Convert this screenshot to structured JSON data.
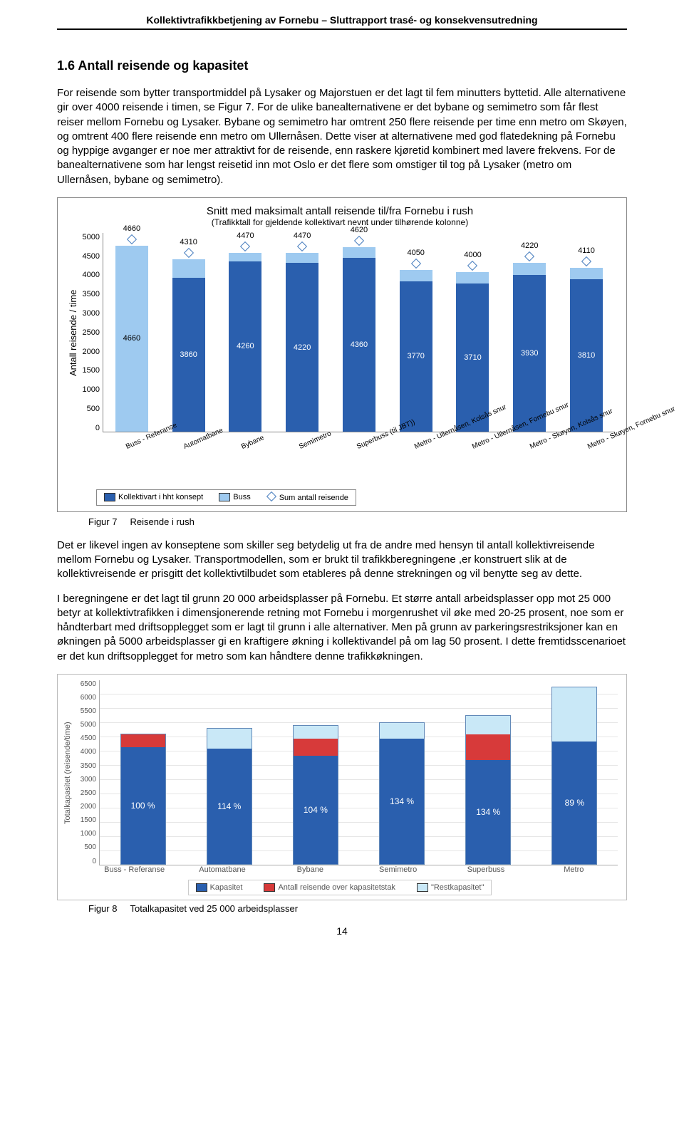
{
  "doc_header": "Kollektivtrafikkbetjening av Fornebu – Sluttrapport trasé- og konsekvensutredning",
  "section_heading": "1.6   Antall reisende og kapasitet",
  "para1": "For reisende som bytter transportmiddel på Lysaker og Majorstuen er det lagt til fem minutters byttetid. Alle alternativene gir over 4000 reisende i timen, se Figur 7. For de ulike banealternativene er det bybane og semimetro som får flest reiser mellom Fornebu og Lysaker. Bybane og semimetro har omtrent 250 flere reisende per time enn metro om Skøyen, og omtrent 400 flere reisende enn metro om Ullernåsen. Dette viser at alternativene med god flatedekning på Fornebu og hyppige avganger er noe mer attraktivt for de reisende, enn raskere kjøretid kombinert med lavere frekvens. For de banealternativene som har lengst reisetid inn mot Oslo er det flere som omstiger til tog på Lysaker (metro om Ullernåsen, bybane og semimetro).",
  "chart1": {
    "title": "Snitt med maksimalt antall reisende til/fra Fornebu i rush",
    "subtitle": "(Trafikktall for gjeldende kollektivart nevnt under tilhørende kolonne)",
    "y_axis_label": "Antall reisende / time",
    "y_max": 5000,
    "y_ticks": [
      "0",
      "500",
      "1000",
      "1500",
      "2000",
      "2500",
      "3000",
      "3500",
      "4000",
      "4500",
      "5000"
    ],
    "series": [
      {
        "cat": "Buss - Referanse",
        "total": 4660,
        "bottom": 4660,
        "bottom_color": "#9ecaf0",
        "top_color": "#9ecaf0"
      },
      {
        "cat": "Automatbane",
        "total": 4310,
        "bottom": 3860,
        "bottom_color": "#2a5fae",
        "top_color": "#9ecaf0"
      },
      {
        "cat": "Bybane",
        "total": 4470,
        "bottom": 4260,
        "bottom_color": "#2a5fae",
        "top_color": "#9ecaf0"
      },
      {
        "cat": "Semimetro",
        "total": 4470,
        "bottom": 4220,
        "bottom_color": "#2a5fae",
        "top_color": "#9ecaf0"
      },
      {
        "cat": "Superbuss (til JBT))",
        "total": 4620,
        "bottom": 4360,
        "bottom_color": "#2a5fae",
        "top_color": "#9ecaf0"
      },
      {
        "cat": "Metro - Ullernåsen, Kolsås snur",
        "total": 4050,
        "bottom": 3770,
        "bottom_color": "#2a5fae",
        "top_color": "#9ecaf0"
      },
      {
        "cat": "Metro - Ullernåsen, Fornebu snur",
        "total": 4000,
        "bottom": 3710,
        "bottom_color": "#2a5fae",
        "top_color": "#9ecaf0"
      },
      {
        "cat": "Metro - Skøyen, Kolsås snur",
        "total": 4220,
        "bottom": 3930,
        "bottom_color": "#2a5fae",
        "top_color": "#9ecaf0"
      },
      {
        "cat": "Metro - Skøyen, Fornebu snur",
        "total": 4110,
        "bottom": 3810,
        "bottom_color": "#2a5fae",
        "top_color": "#9ecaf0"
      }
    ],
    "legend": {
      "a_color": "#2a5fae",
      "a_label": "Kollektivart i hht konsept",
      "b_color": "#9ecaf0",
      "b_label": "Buss",
      "c_label": "Sum antall reisende"
    },
    "caption_num": "Figur 7",
    "caption_txt": "Reisende i rush"
  },
  "para2": "Det er likevel ingen av konseptene som skiller seg betydelig ut fra de andre med hensyn til antall kollektivreisende mellom Fornebu og Lysaker. Transportmodellen, som er brukt til trafikkberegningene ,er konstruert slik at de kollektivreisende er prisgitt det kollektivtilbudet som etableres på denne strekningen og vil benytte seg av dette.",
  "para3": "I beregningene er det lagt til grunn 20 000 arbeidsplasser på Fornebu. Et større antall arbeidsplasser opp mot 25 000 betyr at kollektivtrafikken i dimensjonerende retning mot Fornebu i morgenrushet vil øke med 20-25 prosent, noe som er håndterbart med driftsopplegget som er lagt til grunn i alle alternativer. Men på grunn av parkeringsrestriksjoner kan en økningen på 5000 arbeidsplasser gi en kraftigere økning i kollektivandel på om lag 50 prosent. I dette fremtidsscenarioet er det kun driftsopplegget for metro som kan håndtere denne trafikkøkningen.",
  "chart2": {
    "y_axis_label": "Totalkapasitet (reisende/time)",
    "y_max": 6500,
    "y_ticks": [
      "0",
      "500",
      "1000",
      "1500",
      "2000",
      "2500",
      "3000",
      "3500",
      "4000",
      "4500",
      "5000",
      "5500",
      "6000",
      "6500"
    ],
    "series": [
      {
        "cat": "Buss - Referanse",
        "cap": 4100,
        "over": 450,
        "redo": 0,
        "pct": "100 %"
      },
      {
        "cat": "Automatbane",
        "cap": 4050,
        "over": 0,
        "redo": 700,
        "pct": "114 %"
      },
      {
        "cat": "Bybane",
        "cap": 3800,
        "over": 600,
        "redo": 450,
        "pct": "104 %"
      },
      {
        "cat": "Semimetro",
        "cap": 4400,
        "over": 0,
        "redo": 550,
        "pct": "134 %"
      },
      {
        "cat": "Superbuss",
        "cap": 3650,
        "over": 900,
        "redo": 650,
        "pct": "134 %"
      },
      {
        "cat": "Metro",
        "cap": 4300,
        "over": 0,
        "redo": 1900,
        "pct": "89 %"
      }
    ],
    "legend": {
      "a_color": "#2a5fae",
      "a_label": "Kapasitet",
      "b_color": "#d73a3a",
      "b_label": "Antall reisende over kapasitetstak",
      "c_color": "#c9e8f7",
      "c_label": "\"Restkapasitet\""
    },
    "caption_num": "Figur 8",
    "caption_txt": "Totalkapasitet ved 25 000 arbeidsplasser"
  },
  "page_number": "14"
}
